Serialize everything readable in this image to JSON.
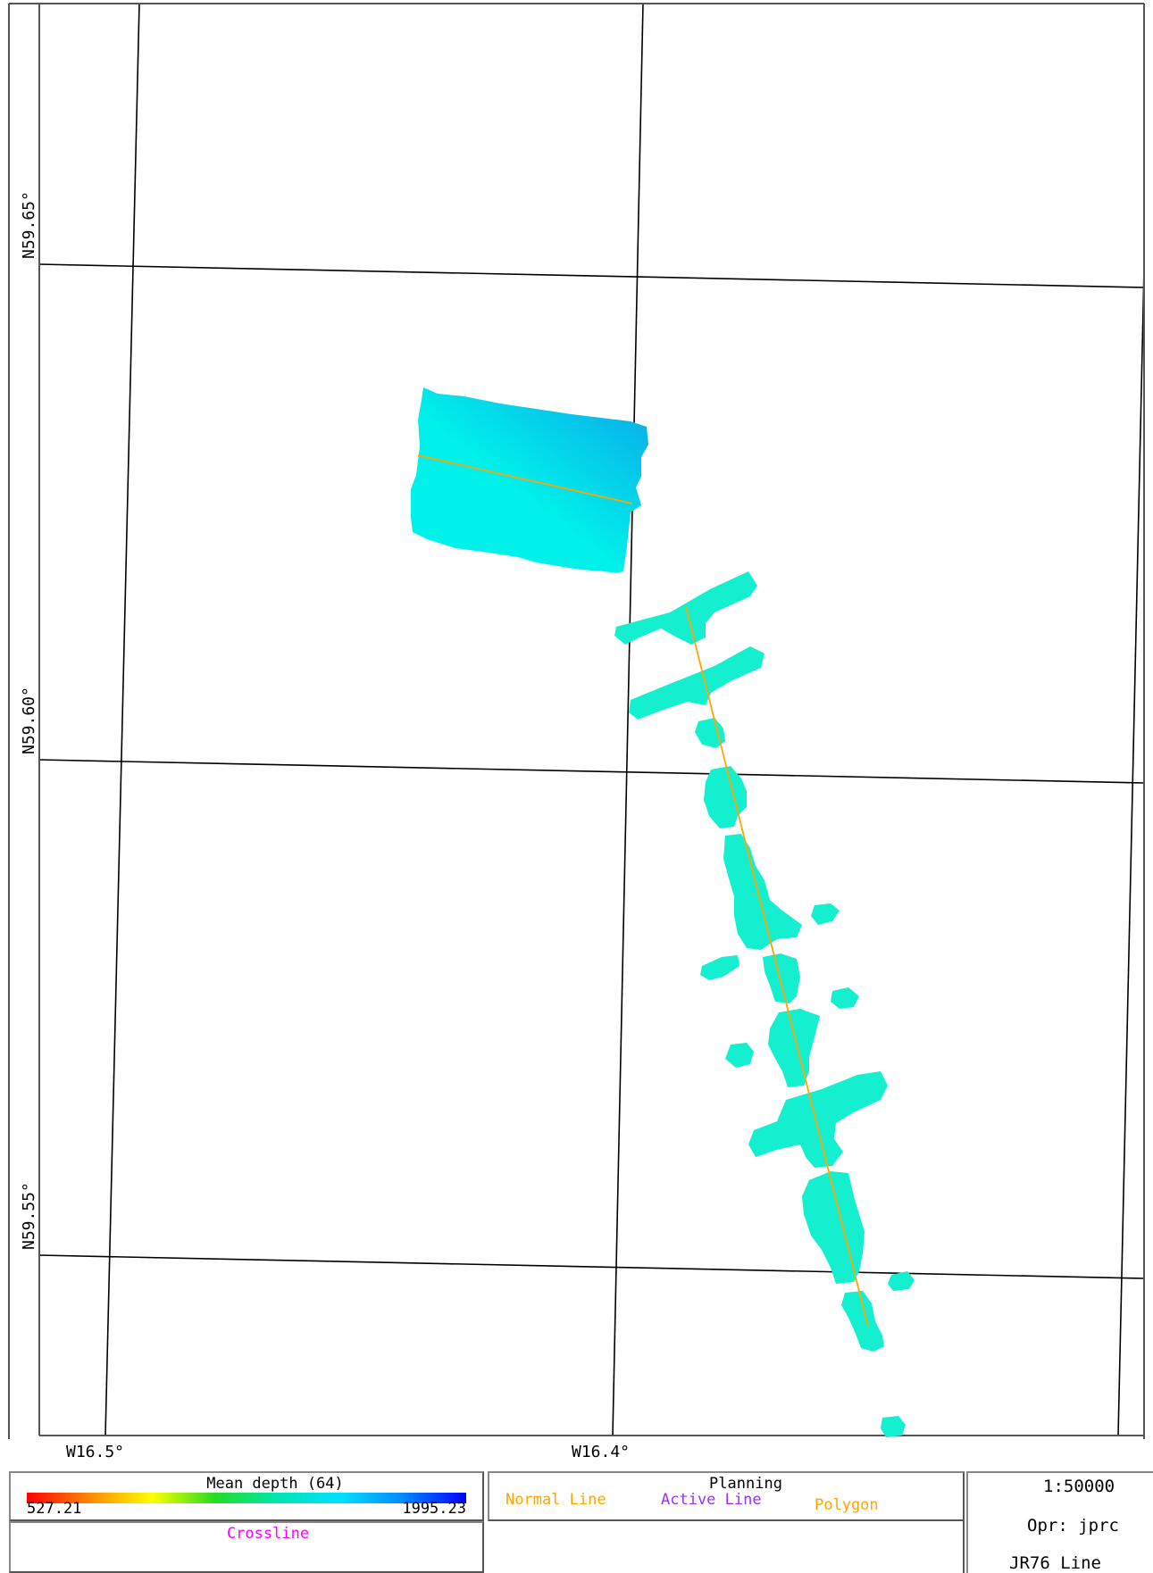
{
  "map": {
    "lat_labels": [
      {
        "label": "N59.65°",
        "lat": 59.65
      },
      {
        "label": "N59.60°",
        "lat": 59.6
      },
      {
        "label": "N59.55°",
        "lat": 59.55
      }
    ],
    "lon_labels": [
      {
        "label": "W16.5°",
        "lon": -16.5
      },
      {
        "label": "W16.4°",
        "lon": -16.4
      }
    ],
    "colors": {
      "grid": "#000000",
      "frame": "#555555",
      "normal_line": "#ffa500",
      "active_line": "#9b30ff",
      "crossline": "#ff00ff",
      "polygon": "#ffa500",
      "survey_patch_light": "#00f0ea",
      "survey_patch_dark": "#0aa6ea",
      "swath": "#14f0cf"
    }
  },
  "legend": {
    "title": "Mean depth (64)",
    "min": "527.21",
    "max": "1995.23",
    "crossline": "Crossline",
    "gradient_colors": [
      "#ff0000",
      "#ff8800",
      "#ffff00",
      "#22dd22",
      "#00e6b0",
      "#00e0ff",
      "#0088ff",
      "#0000ff"
    ]
  },
  "planning": {
    "title": "Planning",
    "normal_line": "Normal Line",
    "active_line": "Active Line",
    "polygon": "Polygon"
  },
  "info": {
    "scale": "1:50000",
    "operator": "Opr: jprc",
    "line": "JR76 Line"
  }
}
